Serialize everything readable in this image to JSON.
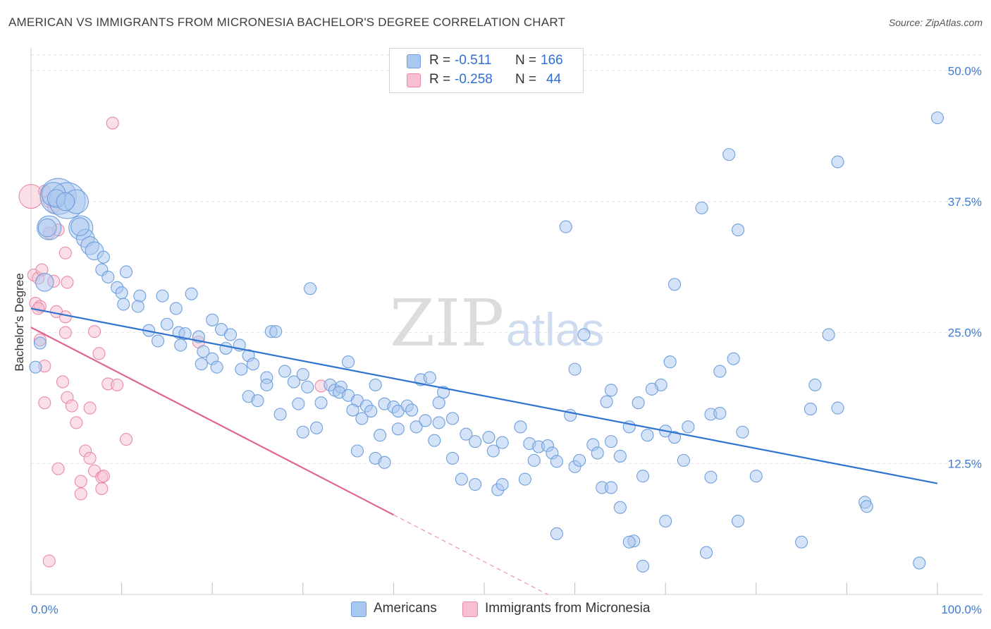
{
  "title": "AMERICAN VS IMMIGRANTS FROM MICRONESIA BACHELOR'S DEGREE CORRELATION CHART",
  "source": "Source: ZipAtlas.com",
  "watermark": {
    "zip": "ZIP",
    "atlas": "atlas"
  },
  "legend": {
    "americans": {
      "r_label": "R =",
      "r_value": "-0.511",
      "n_label": "N =",
      "n_value": "166"
    },
    "micronesia": {
      "r_label": "R =",
      "r_value": "-0.258",
      "n_label": "N =",
      "n_value": "44"
    }
  },
  "colors": {
    "americans_fill": "#a9c8ef",
    "americans_stroke": "#6f9fdc",
    "americans_line": "#2f74d0",
    "micronesia_fill": "#f7bfd0",
    "micronesia_stroke": "#e98aa8",
    "micronesia_line": "#e0668f",
    "axis_label": "#3f7bd0",
    "grid": "#e3e3e3"
  },
  "chart_data": {
    "type": "scatter",
    "title": "AMERICAN VS IMMIGRANTS FROM MICRONESIA BACHELOR'S DEGREE CORRELATION CHART",
    "xlabel": "",
    "ylabel": "Bachelor's Degree",
    "xlim": [
      0,
      100
    ],
    "ylim": [
      0,
      51.5
    ],
    "x_tick_labels": [
      "0.0%",
      "100.0%"
    ],
    "y_ticks": [
      12.5,
      25.0,
      37.5,
      50.0
    ],
    "y_tick_labels": [
      "12.5%",
      "25.0%",
      "37.5%",
      "50.0%"
    ],
    "grid": true,
    "legend_position": "top-center and bottom",
    "series": [
      {
        "name": "Americans",
        "trend": {
          "x": [
            0,
            100
          ],
          "y": [
            27.3,
            10.6
          ]
        },
        "points": [
          [
            3.0,
            38.0,
            3
          ],
          [
            4.0,
            37.6,
            3
          ],
          [
            2.0,
            35.0,
            2
          ],
          [
            2.5,
            38.2,
            2
          ],
          [
            5.0,
            37.5,
            2
          ],
          [
            5.5,
            35.0,
            2
          ],
          [
            1.5,
            29.8,
            1.5
          ],
          [
            6.0,
            34.0,
            1.5
          ],
          [
            6.5,
            33.3,
            1.5
          ],
          [
            7.0,
            32.8,
            1.5
          ],
          [
            8.0,
            32.2,
            1
          ],
          [
            7.8,
            31.0,
            1
          ],
          [
            8.5,
            30.3,
            1
          ],
          [
            10.5,
            30.8,
            1
          ],
          [
            9.5,
            29.3,
            1
          ],
          [
            10.0,
            28.8,
            1
          ],
          [
            12.0,
            28.5,
            1
          ],
          [
            10.2,
            27.7,
            1
          ],
          [
            11.8,
            27.5,
            1
          ],
          [
            14.5,
            28.5,
            1
          ],
          [
            17.7,
            28.7,
            1
          ],
          [
            16.0,
            27.3,
            1
          ],
          [
            13.0,
            25.2,
            1
          ],
          [
            14.0,
            24.2,
            1
          ],
          [
            15.0,
            25.8,
            1
          ],
          [
            16.3,
            25.0,
            1
          ],
          [
            17.0,
            24.9,
            1
          ],
          [
            18.5,
            24.6,
            1
          ],
          [
            20.0,
            26.2,
            1
          ],
          [
            21.0,
            25.3,
            1
          ],
          [
            22.0,
            24.8,
            1
          ],
          [
            16.5,
            23.8,
            1
          ],
          [
            19.0,
            23.2,
            1
          ],
          [
            21.5,
            23.5,
            1
          ],
          [
            23.0,
            23.8,
            1
          ],
          [
            24.0,
            22.8,
            1
          ],
          [
            18.8,
            22.0,
            1
          ],
          [
            20.0,
            22.5,
            1
          ],
          [
            20.5,
            21.7,
            1
          ],
          [
            23.2,
            21.5,
            1
          ],
          [
            24.5,
            22.0,
            1
          ],
          [
            26.5,
            25.1,
            1
          ],
          [
            26.0,
            20.7,
            1
          ],
          [
            26.0,
            20.0,
            1
          ],
          [
            28.0,
            21.3,
            1
          ],
          [
            29.0,
            20.3,
            1
          ],
          [
            30.0,
            21.0,
            1
          ],
          [
            30.5,
            19.8,
            1
          ],
          [
            33.0,
            20.0,
            1
          ],
          [
            33.5,
            19.5,
            1
          ],
          [
            34.2,
            19.8,
            1
          ],
          [
            34.0,
            19.3,
            1
          ],
          [
            35.0,
            22.2,
            1
          ],
          [
            35.0,
            19.0,
            1
          ],
          [
            24.0,
            18.9,
            1
          ],
          [
            25.0,
            18.5,
            1
          ],
          [
            27.5,
            17.2,
            1
          ],
          [
            29.5,
            18.2,
            1
          ],
          [
            32.0,
            18.3,
            1
          ],
          [
            36.0,
            18.5,
            1
          ],
          [
            37.0,
            18.0,
            1
          ],
          [
            37.5,
            17.5,
            1
          ],
          [
            38.0,
            20.0,
            1
          ],
          [
            39.0,
            18.2,
            1
          ],
          [
            40.0,
            17.9,
            1
          ],
          [
            40.5,
            17.5,
            1
          ],
          [
            41.5,
            18.0,
            1
          ],
          [
            42.0,
            17.6,
            1
          ],
          [
            43.0,
            20.5,
            1
          ],
          [
            44.0,
            20.7,
            1
          ],
          [
            45.0,
            18.3,
            1
          ],
          [
            45.5,
            19.3,
            1
          ],
          [
            35.5,
            17.6,
            1
          ],
          [
            36.5,
            16.8,
            1
          ],
          [
            30.0,
            15.5,
            1
          ],
          [
            31.5,
            15.9,
            1
          ],
          [
            38.5,
            15.2,
            1
          ],
          [
            40.5,
            15.8,
            1
          ],
          [
            42.5,
            16.0,
            1
          ],
          [
            43.5,
            16.6,
            1
          ],
          [
            44.5,
            14.7,
            1
          ],
          [
            45.0,
            16.4,
            1
          ],
          [
            46.5,
            16.8,
            1
          ],
          [
            48.0,
            15.3,
            1
          ],
          [
            49.0,
            14.6,
            1
          ],
          [
            50.5,
            15.0,
            1
          ],
          [
            51.0,
            13.7,
            1
          ],
          [
            52.0,
            14.5,
            1
          ],
          [
            54.0,
            16.0,
            1
          ],
          [
            55.0,
            14.4,
            1
          ],
          [
            56.0,
            14.1,
            1
          ],
          [
            57.0,
            14.2,
            1
          ],
          [
            57.5,
            13.5,
            1
          ],
          [
            55.5,
            12.8,
            1
          ],
          [
            58.0,
            12.7,
            1
          ],
          [
            60.0,
            12.2,
            1
          ],
          [
            60.5,
            12.8,
            1
          ],
          [
            62.0,
            14.3,
            1
          ],
          [
            62.5,
            13.5,
            1
          ],
          [
            64.0,
            14.6,
            1
          ],
          [
            65.0,
            13.2,
            1
          ],
          [
            66.0,
            16.0,
            1
          ],
          [
            68.0,
            15.2,
            1
          ],
          [
            70.0,
            15.6,
            1
          ],
          [
            71.0,
            15.0,
            1
          ],
          [
            72.0,
            12.8,
            1
          ],
          [
            75.0,
            11.2,
            1
          ],
          [
            36.0,
            13.7,
            1
          ],
          [
            38.0,
            13.0,
            1
          ],
          [
            39.0,
            12.6,
            1
          ],
          [
            46.5,
            13.0,
            1
          ],
          [
            47.5,
            11.0,
            1
          ],
          [
            49.0,
            10.5,
            1
          ],
          [
            51.5,
            10.0,
            1
          ],
          [
            52.0,
            10.5,
            1
          ],
          [
            54.5,
            11.0,
            1
          ],
          [
            58.0,
            5.8,
            1
          ],
          [
            63.0,
            10.2,
            1
          ],
          [
            64.0,
            10.2,
            1
          ],
          [
            65.0,
            8.3,
            1
          ],
          [
            67.5,
            11.3,
            1
          ],
          [
            66.5,
            5.1,
            1
          ],
          [
            66.0,
            5.0,
            1
          ],
          [
            67.5,
            2.7,
            1
          ],
          [
            70.0,
            7.0,
            1
          ],
          [
            74.5,
            4.0,
            1
          ],
          [
            78.0,
            7.0,
            1
          ],
          [
            85.0,
            5.0,
            1
          ],
          [
            92.0,
            8.8,
            1
          ],
          [
            92.2,
            8.4,
            1
          ],
          [
            98.0,
            3.0,
            1
          ],
          [
            100.0,
            45.5,
            1
          ],
          [
            77.0,
            42.0,
            1
          ],
          [
            89.0,
            41.3,
            1
          ],
          [
            74.0,
            36.9,
            1
          ],
          [
            78.0,
            34.8,
            1
          ],
          [
            59.0,
            35.1,
            1
          ],
          [
            71.0,
            29.6,
            1
          ],
          [
            30.8,
            29.2,
            1
          ],
          [
            27.0,
            25.1,
            1
          ],
          [
            61.0,
            24.8,
            1
          ],
          [
            88.0,
            24.8,
            1
          ],
          [
            77.5,
            22.5,
            1
          ],
          [
            70.5,
            22.2,
            1
          ],
          [
            60.0,
            21.5,
            1
          ],
          [
            76.0,
            21.3,
            1
          ],
          [
            69.5,
            20.0,
            1
          ],
          [
            86.5,
            20.0,
            1
          ],
          [
            68.5,
            19.6,
            1
          ],
          [
            64.0,
            19.5,
            1
          ],
          [
            59.5,
            17.1,
            1
          ],
          [
            63.5,
            18.4,
            1
          ],
          [
            67.0,
            18.3,
            1
          ],
          [
            75.0,
            17.2,
            1
          ],
          [
            76.0,
            17.3,
            1
          ],
          [
            89.0,
            17.8,
            1
          ],
          [
            72.5,
            16.0,
            1
          ],
          [
            86.0,
            17.7,
            1
          ],
          [
            78.5,
            15.5,
            1
          ],
          [
            80.0,
            11.3,
            1
          ],
          [
            0.5,
            21.7,
            1
          ],
          [
            1.0,
            24.0,
            1
          ],
          [
            2.8,
            37.8,
            1.5
          ],
          [
            3.8,
            37.5,
            1.5
          ],
          [
            5.4,
            35.1,
            1.5
          ],
          [
            1.8,
            35.0,
            1.5
          ]
        ]
      },
      {
        "name": "Immigrants from Micronesia",
        "trend": {
          "x": [
            0,
            40
          ],
          "y": [
            25.5,
            7.6
          ],
          "dashed_to": [
            57,
            0
          ]
        },
        "points": [
          [
            0.0,
            38.0,
            2
          ],
          [
            2.0,
            37.5,
            1
          ],
          [
            2.5,
            37.0,
            1
          ],
          [
            1.5,
            38.5,
            1
          ],
          [
            3.0,
            34.8,
            1
          ],
          [
            2.0,
            34.5,
            1
          ],
          [
            3.8,
            32.6,
            1
          ],
          [
            0.3,
            30.5,
            1
          ],
          [
            0.8,
            30.2,
            1
          ],
          [
            1.2,
            31.0,
            1
          ],
          [
            2.5,
            29.9,
            1
          ],
          [
            4.0,
            29.8,
            1
          ],
          [
            0.5,
            27.8,
            1
          ],
          [
            1.0,
            27.5,
            1
          ],
          [
            0.8,
            27.3,
            1
          ],
          [
            2.8,
            27.0,
            1
          ],
          [
            3.8,
            26.5,
            1
          ],
          [
            3.8,
            25.0,
            1
          ],
          [
            7.0,
            25.1,
            1
          ],
          [
            1.0,
            24.3,
            1
          ],
          [
            7.5,
            23.0,
            1
          ],
          [
            1.5,
            21.8,
            1
          ],
          [
            8.5,
            20.1,
            1
          ],
          [
            9.5,
            20.0,
            1
          ],
          [
            3.5,
            20.3,
            1
          ],
          [
            4.0,
            18.8,
            1
          ],
          [
            1.5,
            18.3,
            1
          ],
          [
            4.5,
            18.0,
            1
          ],
          [
            6.5,
            17.8,
            1
          ],
          [
            5.0,
            16.4,
            1
          ],
          [
            10.5,
            14.8,
            1
          ],
          [
            6.0,
            13.7,
            1
          ],
          [
            6.5,
            13.0,
            1
          ],
          [
            3.0,
            12.0,
            1
          ],
          [
            7.0,
            11.8,
            1
          ],
          [
            7.8,
            11.2,
            1
          ],
          [
            8.0,
            11.3,
            1
          ],
          [
            5.5,
            10.8,
            1
          ],
          [
            7.8,
            10.1,
            1
          ],
          [
            5.5,
            9.6,
            1
          ],
          [
            9.0,
            45.0,
            1
          ],
          [
            18.5,
            24.1,
            1
          ],
          [
            32.0,
            19.9,
            1
          ],
          [
            2.0,
            3.2,
            1
          ]
        ]
      }
    ]
  }
}
